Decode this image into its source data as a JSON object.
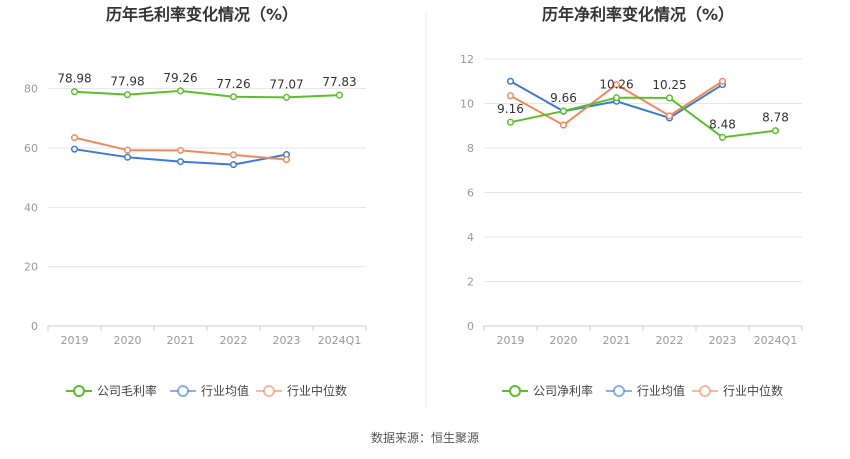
{
  "source_label": "数据来源：恒生聚源",
  "chart_data": [
    {
      "type": "line",
      "title": "历年毛利率变化情况（%）",
      "categories": [
        "2019",
        "2020",
        "2021",
        "2022",
        "2023",
        "2024Q1"
      ],
      "ylim": [
        0,
        90
      ],
      "yticks": [
        0,
        20,
        40,
        60,
        80
      ],
      "grid": true,
      "legend_position": "bottom",
      "series": [
        {
          "name": "公司毛利率",
          "color": "#5cbf2a",
          "values": [
            78.98,
            77.98,
            79.26,
            77.26,
            77.07,
            77.83
          ],
          "labels": [
            "78.98",
            "77.98",
            "79.26",
            "77.26",
            "77.07",
            "77.83"
          ]
        },
        {
          "name": "行业均值",
          "color": "#3d7ad6",
          "values": [
            59.6,
            56.9,
            55.4,
            54.4,
            57.8,
            null
          ]
        },
        {
          "name": "行业中位数",
          "color": "#f08a5d",
          "values": [
            63.5,
            59.3,
            59.2,
            57.7,
            56.1,
            null
          ]
        }
      ]
    },
    {
      "type": "line",
      "title": "历年净利率变化情况（%）",
      "categories": [
        "2019",
        "2020",
        "2021",
        "2022",
        "2023",
        "2024Q1"
      ],
      "ylim": [
        0,
        12
      ],
      "yticks": [
        0,
        2,
        4,
        6,
        8,
        10,
        12
      ],
      "grid": true,
      "legend_position": "bottom",
      "series": [
        {
          "name": "公司净利率",
          "color": "#5cbf2a",
          "values": [
            9.16,
            9.66,
            10.26,
            10.25,
            8.48,
            8.78
          ],
          "labels": [
            "9.16",
            "9.66",
            "10.26",
            "10.25",
            "8.48",
            "8.78"
          ]
        },
        {
          "name": "行业均值",
          "color": "#3d7ad6",
          "values": [
            11.0,
            9.65,
            10.1,
            9.35,
            10.85,
            null
          ]
        },
        {
          "name": "行业中位数",
          "color": "#f08a5d",
          "values": [
            10.35,
            9.03,
            10.85,
            9.45,
            11.0,
            null
          ]
        }
      ]
    }
  ]
}
